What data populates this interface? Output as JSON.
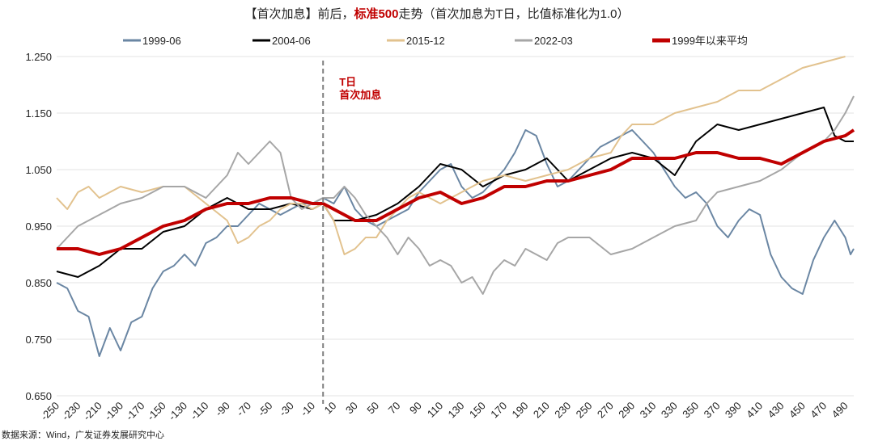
{
  "chart_data": {
    "type": "line",
    "title_parts": [
      "【首次加息】前后，",
      "标准500",
      "走势（首次加息为T日，比值标准化为1.0）"
    ],
    "title_highlight_color": "#c00000",
    "xlabel": "",
    "ylabel": "",
    "xlim": [
      -250,
      498
    ],
    "ylim": [
      0.65,
      1.25
    ],
    "y_ticks": [
      "1.250",
      "1.150",
      "1.050",
      "0.950",
      "0.850",
      "0.750",
      "0.650"
    ],
    "x_ticks": [
      "-250",
      "-230",
      "-210",
      "-190",
      "-170",
      "-150",
      "-130",
      "-110",
      "-90",
      "-70",
      "-50",
      "-30",
      "-10",
      "10",
      "30",
      "50",
      "70",
      "90",
      "110",
      "130",
      "150",
      "170",
      "190",
      "210",
      "230",
      "250",
      "270",
      "290",
      "310",
      "330",
      "350",
      "370",
      "390",
      "410",
      "430",
      "450",
      "470",
      "490"
    ],
    "grid": "horizontal",
    "legend_position": "top",
    "annotation": {
      "x": 0,
      "lines": [
        "T日",
        "首次加息"
      ],
      "color": "#c00000",
      "line_style": "dashed"
    },
    "source": "数据来源：Wind，广发证券发展研究中心",
    "series": [
      {
        "name": "1999-06",
        "color": "#6a86a3",
        "width": 2,
        "points": [
          [
            -250,
            0.85
          ],
          [
            -240,
            0.84
          ],
          [
            -230,
            0.8
          ],
          [
            -220,
            0.79
          ],
          [
            -210,
            0.72
          ],
          [
            -200,
            0.77
          ],
          [
            -190,
            0.73
          ],
          [
            -180,
            0.78
          ],
          [
            -170,
            0.79
          ],
          [
            -160,
            0.84
          ],
          [
            -150,
            0.87
          ],
          [
            -140,
            0.88
          ],
          [
            -130,
            0.9
          ],
          [
            -120,
            0.88
          ],
          [
            -110,
            0.92
          ],
          [
            -100,
            0.93
          ],
          [
            -90,
            0.95
          ],
          [
            -80,
            0.95
          ],
          [
            -70,
            0.97
          ],
          [
            -60,
            0.99
          ],
          [
            -50,
            0.98
          ],
          [
            -40,
            0.97
          ],
          [
            -30,
            0.98
          ],
          [
            -20,
            0.99
          ],
          [
            -10,
            0.99
          ],
          [
            0,
            1.0
          ],
          [
            10,
            0.99
          ],
          [
            20,
            1.02
          ],
          [
            30,
            0.98
          ],
          [
            40,
            0.96
          ],
          [
            50,
            0.95
          ],
          [
            60,
            0.96
          ],
          [
            70,
            0.97
          ],
          [
            80,
            0.98
          ],
          [
            90,
            1.01
          ],
          [
            100,
            1.03
          ],
          [
            110,
            1.05
          ],
          [
            120,
            1.06
          ],
          [
            130,
            1.02
          ],
          [
            140,
            1.0
          ],
          [
            150,
            1.01
          ],
          [
            160,
            1.03
          ],
          [
            170,
            1.05
          ],
          [
            180,
            1.08
          ],
          [
            190,
            1.12
          ],
          [
            200,
            1.11
          ],
          [
            210,
            1.06
          ],
          [
            220,
            1.02
          ],
          [
            230,
            1.03
          ],
          [
            240,
            1.05
          ],
          [
            250,
            1.07
          ],
          [
            260,
            1.09
          ],
          [
            270,
            1.1
          ],
          [
            280,
            1.11
          ],
          [
            290,
            1.12
          ],
          [
            300,
            1.1
          ],
          [
            310,
            1.08
          ],
          [
            320,
            1.05
          ],
          [
            330,
            1.02
          ],
          [
            340,
            1.0
          ],
          [
            350,
            1.01
          ],
          [
            360,
            0.99
          ],
          [
            370,
            0.95
          ],
          [
            380,
            0.93
          ],
          [
            390,
            0.96
          ],
          [
            400,
            0.98
          ],
          [
            410,
            0.97
          ],
          [
            420,
            0.9
          ],
          [
            430,
            0.86
          ],
          [
            440,
            0.84
          ],
          [
            450,
            0.83
          ],
          [
            460,
            0.89
          ],
          [
            470,
            0.93
          ],
          [
            480,
            0.96
          ],
          [
            490,
            0.93
          ],
          [
            495,
            0.9
          ],
          [
            498,
            0.91
          ]
        ]
      },
      {
        "name": "2004-06",
        "color": "#000000",
        "width": 2,
        "points": [
          [
            -250,
            0.87
          ],
          [
            -230,
            0.86
          ],
          [
            -210,
            0.88
          ],
          [
            -190,
            0.91
          ],
          [
            -170,
            0.91
          ],
          [
            -150,
            0.94
          ],
          [
            -130,
            0.95
          ],
          [
            -110,
            0.98
          ],
          [
            -90,
            1.0
          ],
          [
            -70,
            0.98
          ],
          [
            -50,
            0.98
          ],
          [
            -30,
            0.99
          ],
          [
            -10,
            0.98
          ],
          [
            0,
            0.99
          ],
          [
            10,
            0.96
          ],
          [
            30,
            0.96
          ],
          [
            50,
            0.97
          ],
          [
            70,
            0.99
          ],
          [
            90,
            1.02
          ],
          [
            110,
            1.06
          ],
          [
            130,
            1.05
          ],
          [
            150,
            1.02
          ],
          [
            170,
            1.04
          ],
          [
            190,
            1.05
          ],
          [
            210,
            1.07
          ],
          [
            230,
            1.03
          ],
          [
            250,
            1.05
          ],
          [
            270,
            1.07
          ],
          [
            290,
            1.08
          ],
          [
            310,
            1.07
          ],
          [
            330,
            1.04
          ],
          [
            340,
            1.07
          ],
          [
            350,
            1.1
          ],
          [
            370,
            1.13
          ],
          [
            390,
            1.12
          ],
          [
            410,
            1.13
          ],
          [
            430,
            1.14
          ],
          [
            450,
            1.15
          ],
          [
            470,
            1.16
          ],
          [
            480,
            1.11
          ],
          [
            490,
            1.1
          ],
          [
            498,
            1.1
          ]
        ]
      },
      {
        "name": "2015-12",
        "color": "#e2c28e",
        "width": 2,
        "points": [
          [
            -250,
            1.0
          ],
          [
            -240,
            0.98
          ],
          [
            -230,
            1.01
          ],
          [
            -220,
            1.02
          ],
          [
            -210,
            1.0
          ],
          [
            -200,
            1.01
          ],
          [
            -190,
            1.02
          ],
          [
            -170,
            1.01
          ],
          [
            -150,
            1.02
          ],
          [
            -130,
            1.02
          ],
          [
            -110,
            0.99
          ],
          [
            -90,
            0.96
          ],
          [
            -80,
            0.92
          ],
          [
            -70,
            0.93
          ],
          [
            -60,
            0.95
          ],
          [
            -50,
            0.96
          ],
          [
            -40,
            0.98
          ],
          [
            -30,
            0.99
          ],
          [
            -20,
            0.99
          ],
          [
            -10,
            0.98
          ],
          [
            0,
            0.99
          ],
          [
            10,
            0.96
          ],
          [
            20,
            0.9
          ],
          [
            30,
            0.91
          ],
          [
            40,
            0.93
          ],
          [
            50,
            0.93
          ],
          [
            60,
            0.96
          ],
          [
            70,
            0.98
          ],
          [
            80,
            1.0
          ],
          [
            90,
            1.01
          ],
          [
            110,
            0.99
          ],
          [
            130,
            1.01
          ],
          [
            150,
            1.03
          ],
          [
            170,
            1.04
          ],
          [
            190,
            1.03
          ],
          [
            210,
            1.04
          ],
          [
            230,
            1.05
          ],
          [
            250,
            1.07
          ],
          [
            270,
            1.08
          ],
          [
            280,
            1.11
          ],
          [
            290,
            1.13
          ],
          [
            310,
            1.13
          ],
          [
            330,
            1.15
          ],
          [
            350,
            1.16
          ],
          [
            370,
            1.17
          ],
          [
            390,
            1.19
          ],
          [
            410,
            1.19
          ],
          [
            430,
            1.21
          ],
          [
            450,
            1.23
          ],
          [
            470,
            1.24
          ],
          [
            490,
            1.25
          ]
        ]
      },
      {
        "name": "2022-03",
        "color": "#a6a6a6",
        "width": 2,
        "points": [
          [
            -250,
            0.91
          ],
          [
            -230,
            0.95
          ],
          [
            -210,
            0.97
          ],
          [
            -190,
            0.99
          ],
          [
            -170,
            1.0
          ],
          [
            -150,
            1.02
          ],
          [
            -130,
            1.02
          ],
          [
            -110,
            1.0
          ],
          [
            -90,
            1.04
          ],
          [
            -80,
            1.08
          ],
          [
            -70,
            1.06
          ],
          [
            -60,
            1.08
          ],
          [
            -50,
            1.1
          ],
          [
            -40,
            1.08
          ],
          [
            -30,
            1.0
          ],
          [
            -20,
            0.98
          ],
          [
            -10,
            0.99
          ],
          [
            0,
            1.0
          ],
          [
            10,
            1.0
          ],
          [
            20,
            1.02
          ],
          [
            30,
            1.0
          ],
          [
            40,
            0.97
          ],
          [
            50,
            0.95
          ],
          [
            60,
            0.93
          ],
          [
            70,
            0.9
          ],
          [
            80,
            0.93
          ],
          [
            90,
            0.91
          ],
          [
            100,
            0.88
          ],
          [
            110,
            0.89
          ],
          [
            120,
            0.88
          ],
          [
            130,
            0.85
          ],
          [
            140,
            0.86
          ],
          [
            150,
            0.83
          ],
          [
            160,
            0.87
          ],
          [
            170,
            0.89
          ],
          [
            180,
            0.88
          ],
          [
            190,
            0.91
          ],
          [
            200,
            0.9
          ],
          [
            210,
            0.89
          ],
          [
            220,
            0.92
          ],
          [
            230,
            0.93
          ],
          [
            250,
            0.93
          ],
          [
            270,
            0.9
          ],
          [
            290,
            0.91
          ],
          [
            310,
            0.93
          ],
          [
            330,
            0.95
          ],
          [
            350,
            0.96
          ],
          [
            360,
            0.99
          ],
          [
            370,
            1.01
          ],
          [
            390,
            1.02
          ],
          [
            410,
            1.03
          ],
          [
            430,
            1.05
          ],
          [
            450,
            1.08
          ],
          [
            470,
            1.1
          ],
          [
            480,
            1.12
          ],
          [
            490,
            1.15
          ],
          [
            498,
            1.18
          ]
        ]
      },
      {
        "name": "1999年以来平均",
        "color": "#c00000",
        "width": 4,
        "points": [
          [
            -250,
            0.91
          ],
          [
            -230,
            0.91
          ],
          [
            -210,
            0.9
          ],
          [
            -190,
            0.91
          ],
          [
            -170,
            0.93
          ],
          [
            -150,
            0.95
          ],
          [
            -130,
            0.96
          ],
          [
            -110,
            0.98
          ],
          [
            -90,
            0.99
          ],
          [
            -70,
            0.99
          ],
          [
            -50,
            1.0
          ],
          [
            -30,
            1.0
          ],
          [
            -10,
            0.99
          ],
          [
            0,
            0.99
          ],
          [
            10,
            0.98
          ],
          [
            30,
            0.96
          ],
          [
            50,
            0.96
          ],
          [
            70,
            0.98
          ],
          [
            90,
            1.0
          ],
          [
            110,
            1.01
          ],
          [
            130,
            0.99
          ],
          [
            150,
            1.0
          ],
          [
            170,
            1.02
          ],
          [
            190,
            1.02
          ],
          [
            210,
            1.03
          ],
          [
            230,
            1.03
          ],
          [
            250,
            1.04
          ],
          [
            270,
            1.05
          ],
          [
            290,
            1.07
          ],
          [
            310,
            1.07
          ],
          [
            330,
            1.07
          ],
          [
            350,
            1.08
          ],
          [
            370,
            1.08
          ],
          [
            390,
            1.07
          ],
          [
            410,
            1.07
          ],
          [
            430,
            1.06
          ],
          [
            450,
            1.08
          ],
          [
            470,
            1.1
          ],
          [
            490,
            1.11
          ],
          [
            498,
            1.12
          ]
        ]
      }
    ]
  }
}
